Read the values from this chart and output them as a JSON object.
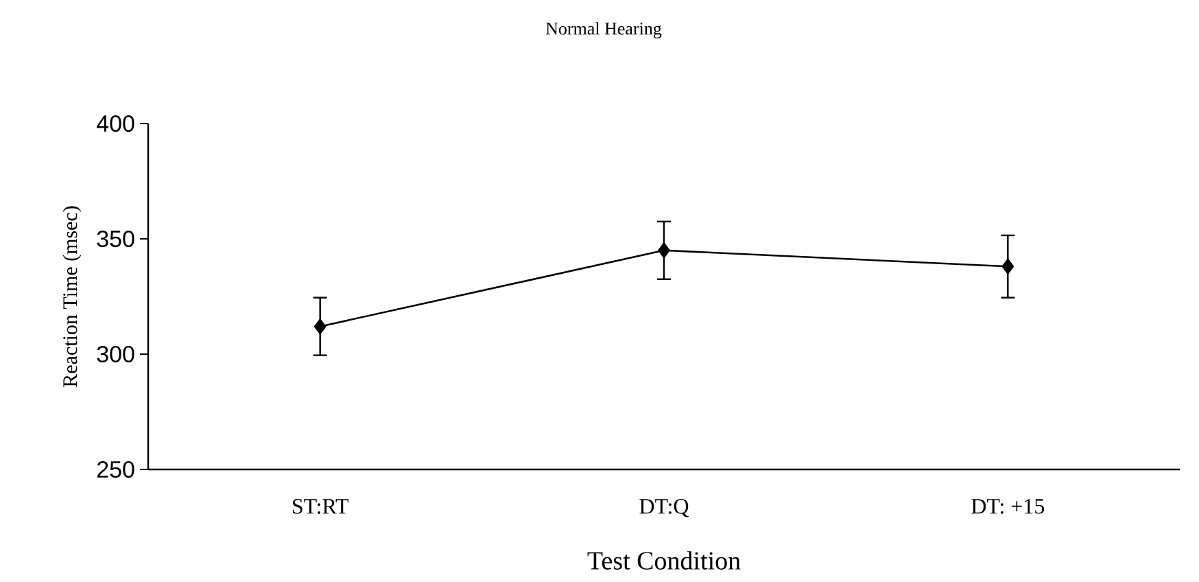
{
  "chart_data": {
    "type": "line",
    "title": "Normal Hearing",
    "xlabel": "Test Condition",
    "ylabel": "Reaction Time (msec)",
    "categories": [
      "ST:RT",
      "DT:Q",
      "DT: +15"
    ],
    "values": [
      312,
      345,
      338
    ],
    "errors": [
      12.5,
      12.5,
      13.5
    ],
    "color": "#000000",
    "marker": "diamond",
    "line_style": "solid",
    "ylim": [
      250,
      400
    ],
    "yticks": [
      250,
      300,
      350,
      400
    ]
  }
}
